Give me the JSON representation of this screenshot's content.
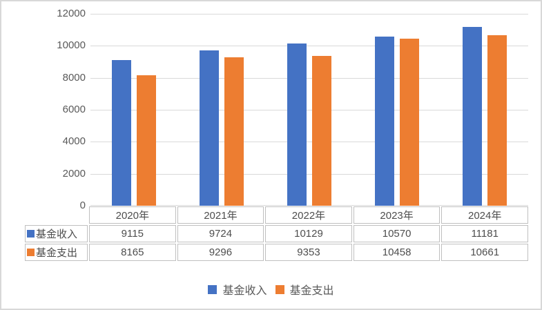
{
  "chart_data": {
    "type": "bar",
    "title": "",
    "xlabel": "",
    "ylabel": "",
    "categories": [
      "2020年",
      "2021年",
      "2022年",
      "2023年",
      "2024年"
    ],
    "series": [
      {
        "name": "基金收入",
        "color": "#4472C4",
        "values": [
          9115,
          9724,
          10129,
          10570,
          11181
        ]
      },
      {
        "name": "基金支出",
        "color": "#ED7D31",
        "values": [
          8165,
          9296,
          9353,
          10458,
          10661
        ]
      }
    ],
    "ylim": [
      0,
      12000
    ],
    "yticks": [
      0,
      2000,
      4000,
      6000,
      8000,
      10000,
      12000
    ],
    "grid": true,
    "legend_position": "bottom",
    "data_table_shown": true
  },
  "table": {
    "corner": "",
    "columns": [
      "2020年",
      "2021年",
      "2022年",
      "2023年",
      "2024年"
    ],
    "rows": [
      {
        "label": "基金收入",
        "key_color": "#4472C4",
        "values": [
          "9115",
          "9724",
          "10129",
          "10570",
          "11181"
        ]
      },
      {
        "label": "基金支出",
        "key_color": "#ED7D31",
        "values": [
          "8165",
          "9296",
          "9353",
          "10458",
          "10661"
        ]
      }
    ]
  },
  "legend": {
    "items": [
      {
        "label": "基金收入",
        "color": "#4472C4"
      },
      {
        "label": "基金支出",
        "color": "#ED7D31"
      }
    ]
  },
  "colors": {
    "series_income": "#4472C4",
    "series_expense": "#ED7D31",
    "gridline": "#d9d9d9",
    "table_border": "#bfbfbf",
    "axis_text": "#595959",
    "figure_border": "#d8d8d8"
  }
}
